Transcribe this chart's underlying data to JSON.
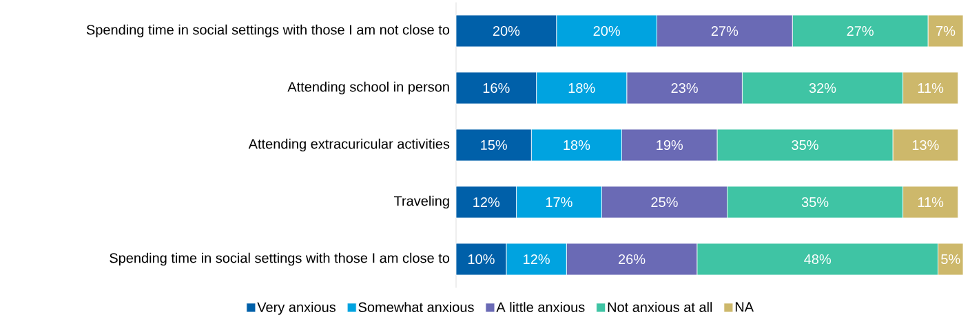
{
  "chart_data": {
    "type": "bar",
    "orientation": "horizontal",
    "stacked": true,
    "categories": [
      "Spending time in social settings with those I am not close to",
      "Attending school in person",
      "Attending extracuricular activities",
      "Traveling",
      "Spending time in social settings with those I am close to"
    ],
    "series": [
      {
        "name": "Very anxious",
        "color": "#0060a9",
        "values": [
          20,
          16,
          15,
          12,
          10
        ],
        "value_labels": [
          "20%",
          "16%",
          "15%",
          "12%",
          "10%"
        ]
      },
      {
        "name": "Somewhat anxious",
        "color": "#00a3e0",
        "values": [
          20,
          18,
          18,
          17,
          12
        ],
        "value_labels": [
          "20%",
          "18%",
          "18%",
          "17%",
          "12%"
        ]
      },
      {
        "name": "A little anxious",
        "color": "#6a6ab5",
        "values": [
          27,
          23,
          19,
          25,
          26
        ],
        "value_labels": [
          "27%",
          "23%",
          "19%",
          "25%",
          "26%"
        ]
      },
      {
        "name": "Not anxious at all",
        "color": "#3fc4a4",
        "values": [
          27,
          32,
          35,
          35,
          48
        ],
        "value_labels": [
          "27%",
          "32%",
          "35%",
          "35%",
          "48%"
        ]
      },
      {
        "name": "NA",
        "color": "#cdb86b",
        "values": [
          7,
          11,
          13,
          11,
          5
        ],
        "value_labels": [
          "7%",
          "11%",
          "13%",
          "11%",
          "5%"
        ]
      }
    ],
    "tick_labels": "y",
    "legend": "bottom",
    "grid": false
  }
}
